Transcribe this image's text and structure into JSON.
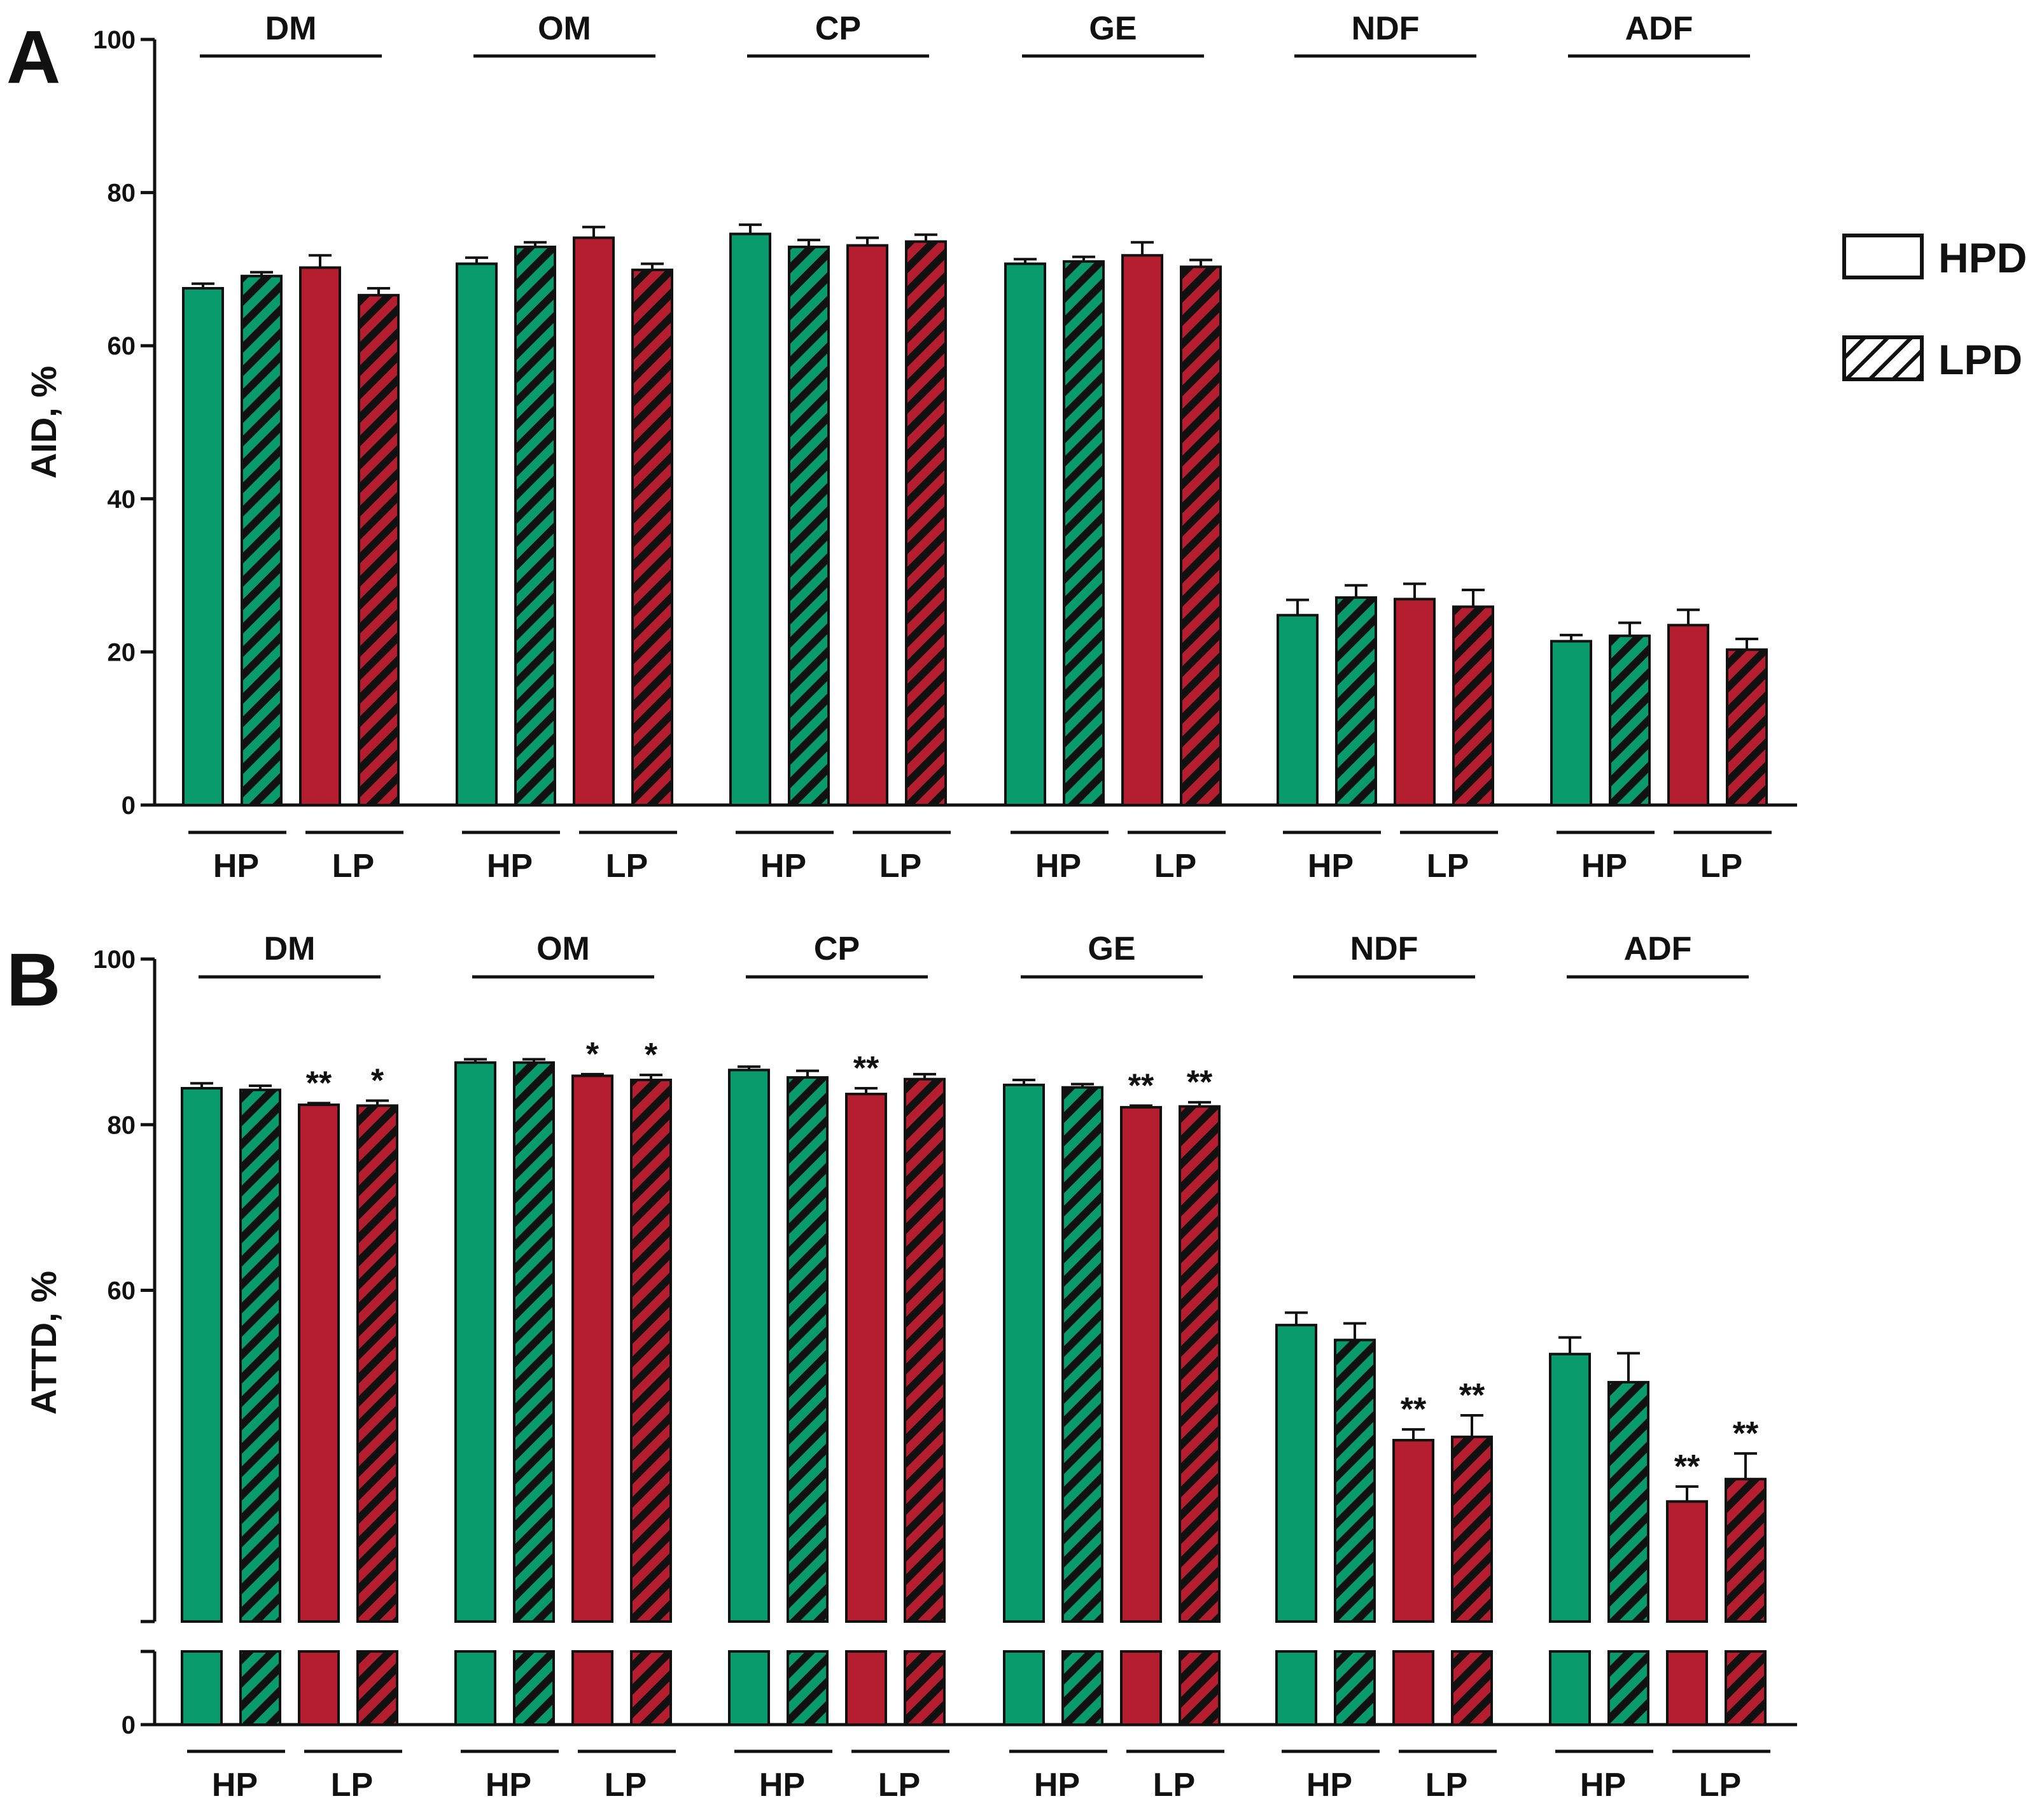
{
  "colors": {
    "HP": "#0a9b6c",
    "LP": "#b41e2e",
    "edge": "#111111"
  },
  "legend": [
    {
      "label": "HPD",
      "pattern": "solid"
    },
    {
      "label": "LPD",
      "pattern": "hatched"
    }
  ],
  "chart_data": [
    {
      "panel": "A",
      "type": "bar",
      "ylabel": "AID, %",
      "ylim": [
        0,
        100
      ],
      "yticks": [
        "0",
        "20",
        "40",
        "60",
        "80",
        "100"
      ],
      "nutrients": [
        "DM",
        "OM",
        "CP",
        "GE",
        "NDF",
        "ADF"
      ],
      "subgroups": [
        "HP",
        "LP"
      ],
      "series": [
        {
          "name": "HP-HPD",
          "color_key": "HP",
          "hatched": false,
          "values": [
            67.5,
            70.7,
            74.6,
            70.7,
            24.8,
            21.4
          ],
          "errors": [
            0.6,
            0.8,
            1.2,
            0.6,
            2.0,
            0.8
          ],
          "sig": [
            "",
            "",
            "",
            "",
            "",
            ""
          ]
        },
        {
          "name": "HP-LPD",
          "color_key": "HP",
          "hatched": true,
          "values": [
            69.1,
            72.9,
            72.9,
            71.0,
            27.1,
            22.1
          ],
          "errors": [
            0.5,
            0.6,
            0.9,
            0.6,
            1.6,
            1.7
          ],
          "sig": [
            "",
            "",
            "",
            "",
            "",
            ""
          ]
        },
        {
          "name": "LP-HPD",
          "color_key": "LP",
          "hatched": false,
          "values": [
            70.2,
            74.1,
            73.1,
            71.8,
            26.9,
            23.5
          ],
          "errors": [
            1.6,
            1.4,
            1.0,
            1.7,
            2.0,
            2.0
          ],
          "sig": [
            "",
            "",
            "",
            "",
            "",
            ""
          ]
        },
        {
          "name": "LP-LPD",
          "color_key": "LP",
          "hatched": true,
          "values": [
            66.6,
            69.9,
            73.6,
            70.3,
            25.9,
            20.3
          ],
          "errors": [
            0.9,
            0.8,
            0.9,
            0.9,
            2.2,
            1.4
          ],
          "sig": [
            "",
            "",
            "",
            "",
            "",
            ""
          ]
        }
      ]
    },
    {
      "panel": "B",
      "type": "bar",
      "ylabel": "ATTD, %",
      "ylim": [
        20,
        100
      ],
      "axis_break": true,
      "yticks": [
        "0",
        "60",
        "80",
        "100"
      ],
      "nutrients": [
        "DM",
        "OM",
        "CP",
        "GE",
        "NDF",
        "ADF"
      ],
      "subgroups": [
        "HP",
        "LP"
      ],
      "series": [
        {
          "name": "HP-HPD",
          "color_key": "HP",
          "hatched": false,
          "values": [
            84.4,
            87.5,
            86.6,
            84.8,
            55.8,
            52.3
          ],
          "errors": [
            0.6,
            0.4,
            0.4,
            0.6,
            1.5,
            2.0
          ],
          "sig": [
            "",
            "",
            "",
            "",
            "",
            ""
          ]
        },
        {
          "name": "HP-LPD",
          "color_key": "HP",
          "hatched": true,
          "values": [
            84.2,
            87.5,
            85.7,
            84.5,
            54.0,
            48.9
          ],
          "errors": [
            0.5,
            0.4,
            0.8,
            0.4,
            2.0,
            3.5
          ],
          "sig": [
            "",
            "",
            "",
            "",
            "",
            ""
          ]
        },
        {
          "name": "LP-HPD",
          "color_key": "LP",
          "hatched": false,
          "values": [
            82.4,
            85.9,
            83.7,
            82.1,
            41.9,
            34.5
          ],
          "errors": [
            0.2,
            0.2,
            0.7,
            0.2,
            1.3,
            1.8
          ],
          "sig": [
            "**",
            "*",
            "**",
            "**",
            "**",
            "**"
          ]
        },
        {
          "name": "LP-LPD",
          "color_key": "LP",
          "hatched": true,
          "values": [
            82.3,
            85.4,
            85.5,
            82.2,
            42.3,
            37.2
          ],
          "errors": [
            0.6,
            0.6,
            0.6,
            0.5,
            2.6,
            3.1
          ],
          "sig": [
            "*",
            "*",
            "",
            "**",
            "**",
            "**"
          ]
        }
      ]
    }
  ]
}
